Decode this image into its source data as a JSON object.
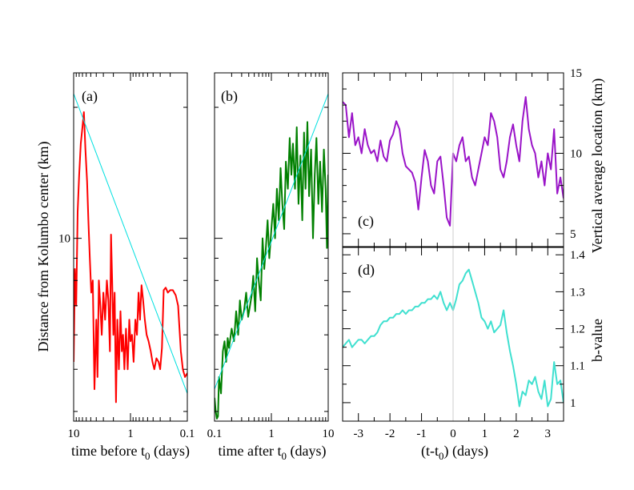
{
  "colors": {
    "red": "#ff0000",
    "green": "#008000",
    "cyan": "#00e0e0",
    "purple": "#9a14c8",
    "turquoise": "#40e0d0",
    "zero_line": "#cccccc"
  },
  "chart_data": [
    {
      "id": "a",
      "type": "line",
      "panel_label": "(a)",
      "xlabel_main": "time before t",
      "xlabel_sub": "0",
      "xlabel_end": " (days)",
      "ylabel": "Distance from Kolumbo center (km)",
      "xscale": "log-reversed",
      "xlim": [
        10,
        0.1
      ],
      "yscale": "log",
      "ylim": [
        3.8,
        24
      ],
      "x_tick_labels": [
        {
          "value": 10,
          "label": "10"
        },
        {
          "value": 1,
          "label": "1"
        },
        {
          "value": 0.1,
          "label": "0.1"
        }
      ],
      "y_tick_labels": [
        {
          "value": 10,
          "label": "10"
        }
      ],
      "series": [
        {
          "name": "distance",
          "color": "#ff0000",
          "x": [
            10,
            9.5,
            9.0,
            8.5,
            8.0,
            7.5,
            7.0,
            6.6,
            6.2,
            5.8,
            5.5,
            5.2,
            4.9,
            4.6,
            4.3,
            4.0,
            3.8,
            3.6,
            3.4,
            3.2,
            3.0,
            2.8,
            2.6,
            2.45,
            2.3,
            2.2,
            2.1,
            2.0,
            1.9,
            1.8,
            1.7,
            1.6,
            1.5,
            1.42,
            1.35,
            1.28,
            1.2,
            1.12,
            1.05,
            1.0,
            0.94,
            0.88,
            0.82,
            0.77,
            0.72,
            0.68,
            0.64,
            0.6,
            0.56,
            0.52,
            0.48,
            0.44,
            0.41,
            0.38,
            0.35,
            0.32,
            0.3,
            0.28,
            0.26,
            0.24,
            0.22,
            0.2,
            0.18,
            0.16,
            0.145,
            0.13,
            0.12,
            0.11,
            0.1
          ],
          "y": [
            5.2,
            8.5,
            7.0,
            11.5,
            14.0,
            16.5,
            18.0,
            19.5,
            16.0,
            13.5,
            11.0,
            9.0,
            7.5,
            8.0,
            4.5,
            6.5,
            4.8,
            8.0,
            7.0,
            6.0,
            7.5,
            6.5,
            8.0,
            7.2,
            5.5,
            10.2,
            8.0,
            6.0,
            7.5,
            4.2,
            6.5,
            5.0,
            6.8,
            5.5,
            6.0,
            5.0,
            6.2,
            5.0,
            6.5,
            5.8,
            6.0,
            5.2,
            6.5,
            6.0,
            7.5,
            6.5,
            7.8,
            7.2,
            6.5,
            6.0,
            5.8,
            5.5,
            5.2,
            5.0,
            5.3,
            5.2,
            5.0,
            5.6,
            7.6,
            7.7,
            7.5,
            7.6,
            7.6,
            7.4,
            7.0,
            5.5,
            5.0,
            4.8,
            4.9
          ]
        },
        {
          "name": "fit",
          "color": "#00e0e0",
          "x": [
            10,
            0.1
          ],
          "y": [
            21.5,
            4.4
          ]
        }
      ]
    },
    {
      "id": "b",
      "type": "line",
      "panel_label": "(b)",
      "xlabel_main": "time after t",
      "xlabel_sub": "0",
      "xlabel_end": " (days)",
      "xscale": "log",
      "xlim": [
        0.1,
        10
      ],
      "yscale": "log",
      "ylim": [
        3.8,
        24
      ],
      "x_tick_labels": [
        {
          "value": 0.1,
          "label": "0.1"
        },
        {
          "value": 1,
          "label": "1"
        },
        {
          "value": 10,
          "label": "10"
        }
      ],
      "series": [
        {
          "name": "distance",
          "color": "#008000",
          "x": [
            0.1,
            0.105,
            0.11,
            0.115,
            0.12,
            0.13,
            0.14,
            0.15,
            0.16,
            0.17,
            0.18,
            0.2,
            0.22,
            0.24,
            0.26,
            0.28,
            0.3,
            0.33,
            0.36,
            0.39,
            0.42,
            0.45,
            0.48,
            0.52,
            0.56,
            0.6,
            0.65,
            0.7,
            0.75,
            0.8,
            0.86,
            0.92,
            1.0,
            1.08,
            1.16,
            1.25,
            1.35,
            1.45,
            1.56,
            1.68,
            1.8,
            1.95,
            2.1,
            2.25,
            2.4,
            2.6,
            2.8,
            3.0,
            3.25,
            3.5,
            3.75,
            4.0,
            4.3,
            4.6,
            5.0,
            5.4,
            5.8,
            6.2,
            6.7,
            7.2,
            7.8,
            8.4,
            9.0,
            9.5,
            10
          ],
          "y": [
            4.3,
            4.0,
            3.85,
            3.9,
            4.8,
            4.4,
            5.5,
            5.8,
            5.2,
            5.9,
            5.6,
            6.2,
            5.8,
            6.8,
            6.0,
            7.2,
            6.5,
            6.8,
            7.5,
            6.6,
            7.0,
            7.4,
            8.2,
            6.8,
            9.0,
            8.0,
            7.2,
            10.0,
            8.5,
            9.5,
            11.0,
            9.0,
            10.5,
            12.0,
            10.0,
            13.0,
            11.0,
            14.5,
            12.0,
            10.5,
            15.0,
            13.0,
            17.0,
            14.0,
            16.5,
            13.0,
            18.0,
            12.0,
            15.5,
            11.0,
            17.5,
            13.0,
            18.5,
            12.5,
            16.0,
            10.0,
            14.0,
            17.0,
            12.0,
            15.0,
            11.5,
            16.0,
            13.0,
            9.5,
            14.0
          ]
        },
        {
          "name": "fit",
          "color": "#00e0e0",
          "x": [
            0.1,
            10
          ],
          "y": [
            4.5,
            21.5
          ]
        }
      ]
    },
    {
      "id": "c",
      "type": "line",
      "panel_label": "(c)",
      "ylabel": "Vertical average location (km)",
      "ylabel_side": "right",
      "xlim": [
        -3.5,
        3.5
      ],
      "ylim": [
        4.2,
        15
      ],
      "y_tick_labels": [
        {
          "value": 5,
          "label": "5"
        },
        {
          "value": 10,
          "label": "10"
        },
        {
          "value": 15,
          "label": "15"
        }
      ],
      "series": [
        {
          "name": "depth",
          "color": "#9a14c8",
          "x": [
            -3.5,
            -3.4,
            -3.3,
            -3.2,
            -3.1,
            -3.0,
            -2.9,
            -2.8,
            -2.7,
            -2.6,
            -2.5,
            -2.4,
            -2.3,
            -2.2,
            -2.1,
            -2.0,
            -1.9,
            -1.8,
            -1.7,
            -1.6,
            -1.5,
            -1.4,
            -1.3,
            -1.2,
            -1.1,
            -1.0,
            -0.9,
            -0.8,
            -0.7,
            -0.6,
            -0.5,
            -0.4,
            -0.3,
            -0.2,
            -0.1,
            0.0,
            0.1,
            0.2,
            0.3,
            0.4,
            0.5,
            0.6,
            0.7,
            0.8,
            0.9,
            1.0,
            1.1,
            1.2,
            1.3,
            1.4,
            1.5,
            1.6,
            1.7,
            1.8,
            1.9,
            2.0,
            2.1,
            2.2,
            2.3,
            2.4,
            2.5,
            2.6,
            2.7,
            2.8,
            2.9,
            3.0,
            3.1,
            3.2,
            3.3,
            3.4,
            3.5
          ],
          "y": [
            13.2,
            13.0,
            11.0,
            12.5,
            10.5,
            11.0,
            10.0,
            11.5,
            10.5,
            10.0,
            10.2,
            9.5,
            10.8,
            9.8,
            9.5,
            10.8,
            11.2,
            12.0,
            11.5,
            10.0,
            9.2,
            9.0,
            8.8,
            8.2,
            6.5,
            8.5,
            10.2,
            9.5,
            8.0,
            7.5,
            9.5,
            9.8,
            8.0,
            6.0,
            5.5,
            10.0,
            9.5,
            10.5,
            11.0,
            9.5,
            9.8,
            8.5,
            8.0,
            9.0,
            10.0,
            11.0,
            10.5,
            12.5,
            12.0,
            11.0,
            9.0,
            8.5,
            9.5,
            11.0,
            11.8,
            10.5,
            9.5,
            12.0,
            13.5,
            11.5,
            10.5,
            10.0,
            8.5,
            9.5,
            8.0,
            10.0,
            9.0,
            11.5,
            7.5,
            8.5,
            7.2
          ]
        }
      ]
    },
    {
      "id": "d",
      "type": "line",
      "panel_label": "(d)",
      "ylabel": "b-value",
      "ylabel_side": "right",
      "xlabel": "(t-t",
      "xlabel_sub": "0",
      "xlabel_end": ") (days)",
      "xlim": [
        -3.5,
        3.5
      ],
      "ylim": [
        0.95,
        1.42
      ],
      "x_tick_labels": [
        {
          "value": -3,
          "label": "-3"
        },
        {
          "value": -2,
          "label": "-2"
        },
        {
          "value": -1,
          "label": "-1"
        },
        {
          "value": 0,
          "label": "0"
        },
        {
          "value": 1,
          "label": "1"
        },
        {
          "value": 2,
          "label": "2"
        },
        {
          "value": 3,
          "label": "3"
        }
      ],
      "y_tick_labels": [
        {
          "value": 1.0,
          "label": "1"
        },
        {
          "value": 1.1,
          "label": "1.1"
        },
        {
          "value": 1.2,
          "label": "1.2"
        },
        {
          "value": 1.3,
          "label": "1.3"
        },
        {
          "value": 1.4,
          "label": "1.4"
        }
      ],
      "series": [
        {
          "name": "b-value",
          "color": "#40e0d0",
          "x": [
            -3.5,
            -3.4,
            -3.3,
            -3.2,
            -3.1,
            -3.0,
            -2.9,
            -2.8,
            -2.7,
            -2.6,
            -2.5,
            -2.4,
            -2.3,
            -2.2,
            -2.1,
            -2.0,
            -1.9,
            -1.8,
            -1.7,
            -1.6,
            -1.5,
            -1.4,
            -1.3,
            -1.2,
            -1.1,
            -1.0,
            -0.9,
            -0.8,
            -0.7,
            -0.6,
            -0.5,
            -0.4,
            -0.3,
            -0.2,
            -0.1,
            0.0,
            0.1,
            0.2,
            0.3,
            0.4,
            0.5,
            0.6,
            0.7,
            0.8,
            0.9,
            1.0,
            1.1,
            1.2,
            1.3,
            1.4,
            1.5,
            1.6,
            1.7,
            1.8,
            1.9,
            2.0,
            2.1,
            2.2,
            2.3,
            2.4,
            2.5,
            2.6,
            2.7,
            2.8,
            2.9,
            3.0,
            3.1,
            3.2,
            3.3,
            3.4,
            3.5
          ],
          "y": [
            1.15,
            1.16,
            1.17,
            1.15,
            1.16,
            1.17,
            1.17,
            1.16,
            1.17,
            1.18,
            1.18,
            1.19,
            1.21,
            1.22,
            1.22,
            1.23,
            1.23,
            1.24,
            1.24,
            1.25,
            1.24,
            1.25,
            1.25,
            1.26,
            1.26,
            1.27,
            1.27,
            1.28,
            1.28,
            1.29,
            1.28,
            1.3,
            1.27,
            1.25,
            1.27,
            1.25,
            1.28,
            1.32,
            1.33,
            1.35,
            1.36,
            1.33,
            1.3,
            1.27,
            1.23,
            1.22,
            1.2,
            1.22,
            1.19,
            1.2,
            1.21,
            1.25,
            1.19,
            1.14,
            1.1,
            1.05,
            0.99,
            1.03,
            1.02,
            1.06,
            1.05,
            1.07,
            1.03,
            1.01,
            1.06,
            0.99,
            1.01,
            1.11,
            1.05,
            1.06,
            1.0
          ]
        }
      ]
    }
  ]
}
